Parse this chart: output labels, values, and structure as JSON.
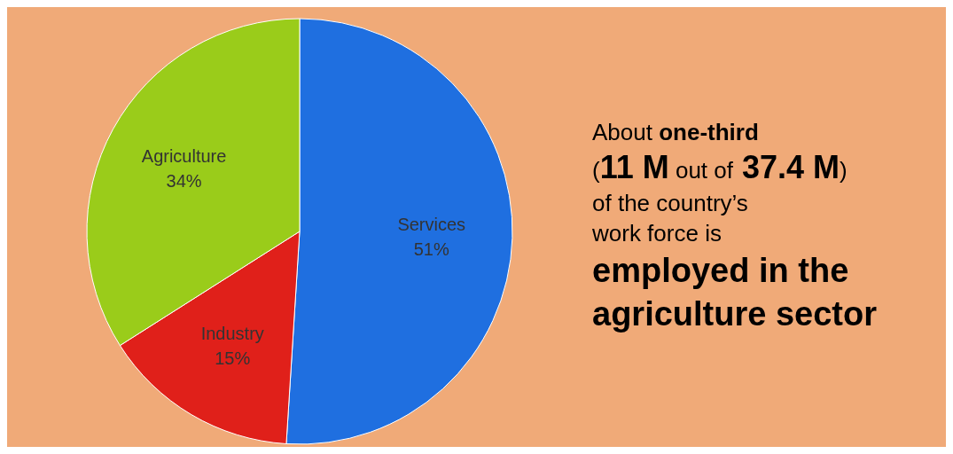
{
  "chart_data": {
    "type": "pie",
    "categories": [
      "Services",
      "Industry",
      "Agriculture"
    ],
    "values": [
      51,
      15,
      34
    ],
    "value_labels": [
      "51%",
      "15%",
      "34%"
    ],
    "colors": [
      "#1f6fe0",
      "#e0201a",
      "#9acc1a"
    ],
    "annotations": [
      "About",
      "one-third",
      "(",
      "11 M",
      "out of",
      "37.4 M",
      ")",
      "of the country’s",
      "work force is",
      "employed in the",
      "agriculture sector"
    ]
  }
}
